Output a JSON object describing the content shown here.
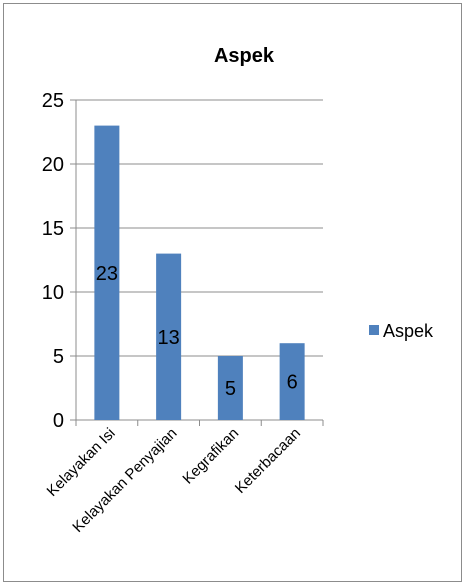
{
  "chart_data": {
    "type": "bar",
    "title": "Aspek",
    "categories": [
      "Kelayakan Isi",
      "Kelayakan Penyajian",
      "Kegrafikan",
      "Keterbacaan"
    ],
    "series": [
      {
        "name": "Aspek",
        "values": [
          23,
          13,
          5,
          6
        ],
        "color": "#4f81bd"
      }
    ],
    "data_labels": [
      "23",
      "13",
      "5",
      "6"
    ],
    "ylim": [
      0,
      25
    ],
    "yticks": [
      "0",
      "5",
      "10",
      "15",
      "20",
      "25"
    ],
    "grid": true,
    "legend_position": "right"
  }
}
